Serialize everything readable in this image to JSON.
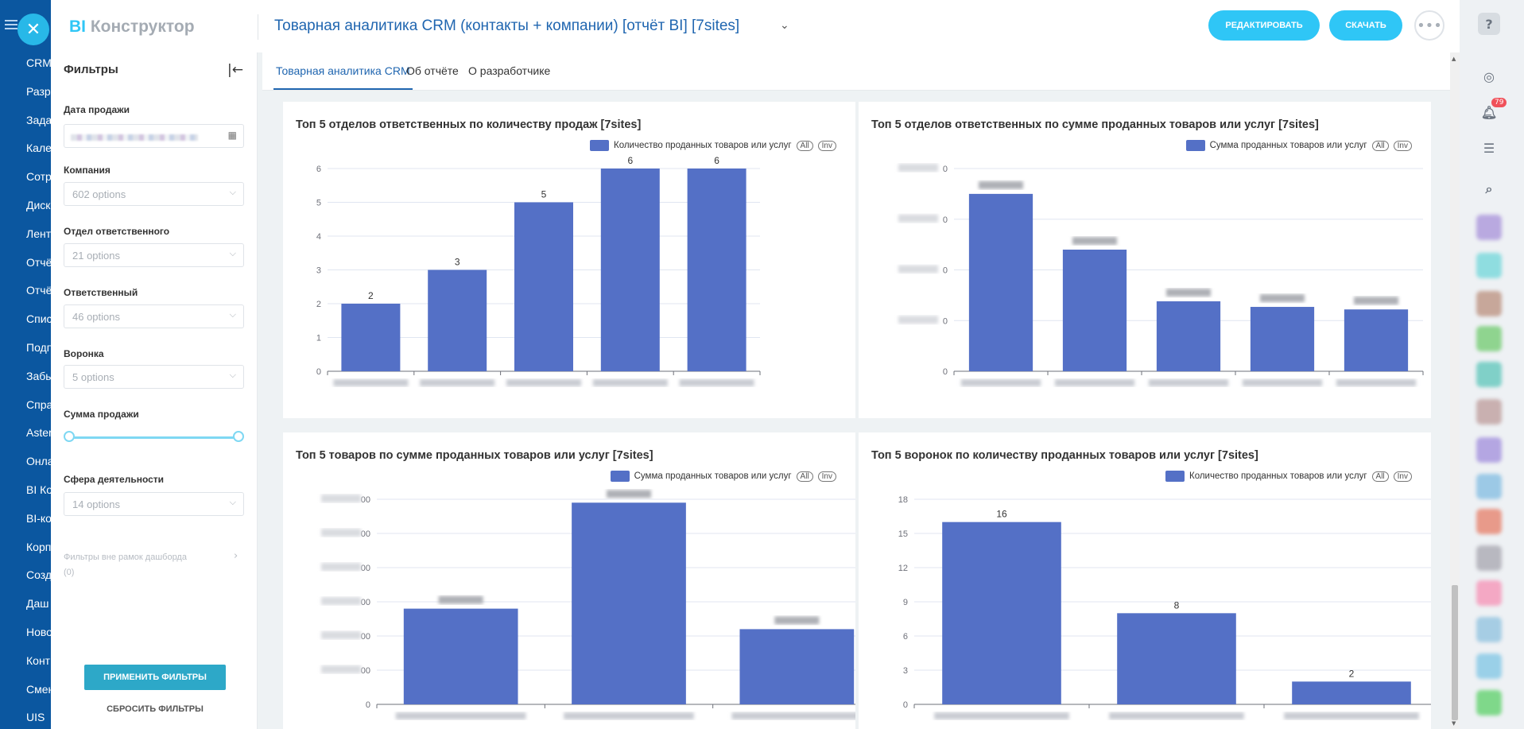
{
  "bg_nav": {
    "items": [
      "CRM",
      "Разр",
      "Зада",
      "Кале",
      "Сотр",
      "Диск",
      "Лент",
      "Отчё",
      "Отчё",
      "Спис",
      "Подп",
      "Забы",
      "Спра",
      "Aster",
      "Онла",
      "BI Ко",
      "BI-ко",
      "Корп",
      "Созд",
      "Даш",
      "Ново",
      "Конт",
      "Смен",
      "UIS"
    ]
  },
  "header": {
    "logo_bi": "BI",
    "logo_text": " Конструктор",
    "title": "Товарная аналитика CRM (контакты + компании) [отчёт BI] [7sites]",
    "edit_label": "РЕДАКТИРОВАТЬ",
    "download_label": "СКАЧАТЬ",
    "close_glyph": "✕",
    "chevron_glyph": "⌄",
    "more_glyph": "•••"
  },
  "filters": {
    "title": "Фильтры",
    "collapse_glyph": "|←",
    "date_label": "Дата продажи",
    "company_label": "Компания",
    "company_value": "602 options",
    "dept_label": "Отдел ответственного",
    "dept_value": "21 options",
    "responsible_label": "Ответственный",
    "responsible_value": "46 options",
    "funnel_label": "Воронка",
    "funnel_value": "5 options",
    "sum_label": "Сумма продажи",
    "sphere_label": "Сфера деятельности",
    "sphere_value": "14 options",
    "outside_label": "Фильтры вне рамок дашборда",
    "outside_count": "(0)",
    "apply_label": "ПРИМЕНИТЬ ФИЛЬТРЫ",
    "reset_label": "СБРОСИТЬ ФИЛЬТРЫ",
    "select_chevron": "⌵",
    "calendar_glyph": "▦",
    "outside_chevron": "›"
  },
  "tabs": [
    {
      "label": "Товарная аналитика CRM",
      "active": true
    },
    {
      "label": "Об отчёте",
      "active": false
    },
    {
      "label": "О разработчике",
      "active": false
    }
  ],
  "legend_pills": {
    "all": "All",
    "inv": "Inv"
  },
  "right_bar": {
    "help_glyph": "?",
    "badge": "79"
  },
  "colors": {
    "bar": "#5470c6",
    "accent": "#2fc6f6",
    "title": "#2066b0"
  },
  "chart_data": [
    {
      "type": "bar",
      "title": "Топ 5 отделов ответственных по количеству продаж [7sites]",
      "legend": "Количество проданных товаров или услуг",
      "categories": [
        "",
        "",
        "",
        "",
        ""
      ],
      "values": [
        2,
        3,
        5,
        6,
        6
      ],
      "data_labels": [
        "2",
        "3",
        "5",
        "6",
        "6"
      ],
      "ylim": [
        0,
        6
      ],
      "yticks": [
        "0",
        "1",
        "2",
        "3",
        "4",
        "5",
        "6"
      ],
      "blurred_labels": false
    },
    {
      "type": "bar",
      "title": "Топ 5 отделов ответственных по сумме проданных товаров или услуг [7sites]",
      "legend": "Сумма проданных товаров или услуг",
      "categories": [
        "",
        "",
        "",
        "",
        ""
      ],
      "values": [
        35,
        24,
        13.8,
        12.7,
        12.2
      ],
      "data_labels": [
        "",
        "",
        "",
        "",
        ""
      ],
      "ylim": [
        0,
        40
      ],
      "yticks": [
        "0",
        "0",
        "0",
        "0",
        "0"
      ],
      "blurred_labels": true
    },
    {
      "type": "bar",
      "title": "Топ 5 товаров по сумме проданных товаров или услуг [7sites]",
      "legend": "Сумма проданных товаров или услуг",
      "categories": [
        "",
        "",
        ""
      ],
      "values": [
        2.8,
        5.9,
        2.2
      ],
      "data_labels": [
        "",
        "",
        ""
      ],
      "ylim": [
        0,
        6
      ],
      "yticks": [
        "0",
        "00",
        "00",
        "00",
        "00",
        "00",
        "00"
      ],
      "blurred_labels": true
    },
    {
      "type": "bar",
      "title": "Топ 5 воронок по количеству проданных товаров или услуг [7sites]",
      "legend": "Количество проданных товаров или услуг",
      "categories": [
        "",
        "",
        ""
      ],
      "values": [
        16,
        8,
        2
      ],
      "data_labels": [
        "16",
        "8",
        "2"
      ],
      "ylim": [
        0,
        18
      ],
      "yticks": [
        "0",
        "3",
        "6",
        "9",
        "12",
        "15",
        "18"
      ],
      "blurred_labels": false
    }
  ]
}
